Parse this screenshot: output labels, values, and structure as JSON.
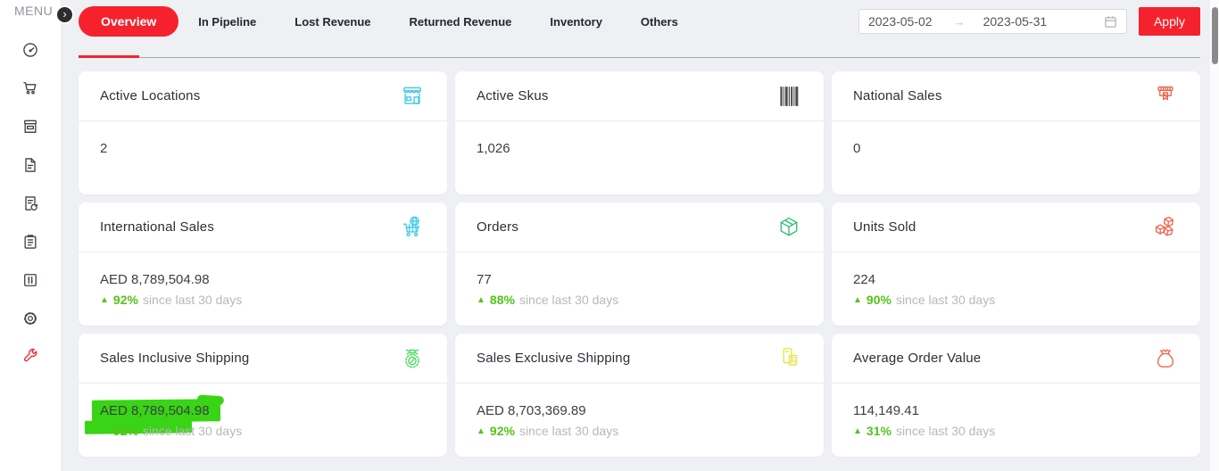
{
  "colors": {
    "accent_red": "#f5222d",
    "positive_green": "#52c41a",
    "highlight_green": "#38d415",
    "icon_cyan": "#3bc8e8",
    "icon_coral": "#f06449",
    "icon_green": "#2fbf71",
    "icon_lime": "#41d95d",
    "icon_yellow": "#e4e53e",
    "icon_dark": "#4a4a4a"
  },
  "change_glyph": "▲",
  "sidebar": {
    "menu_label": "MENU",
    "toggle_glyph": "›",
    "items": [
      {
        "icon": "dashboard-gauge-icon"
      },
      {
        "icon": "shopping-cart-icon"
      },
      {
        "icon": "storefront-icon"
      },
      {
        "icon": "document-icon"
      },
      {
        "icon": "report-sync-icon"
      },
      {
        "icon": "clipboard-icon"
      },
      {
        "icon": "sliders-icon"
      },
      {
        "icon": "settings-gear-icon"
      },
      {
        "icon": "tools-wrench-icon",
        "color": "#f5222d"
      }
    ]
  },
  "tabs": [
    {
      "label": "Overview",
      "active": true
    },
    {
      "label": "In Pipeline"
    },
    {
      "label": "Lost Revenue"
    },
    {
      "label": "Returned Revenue"
    },
    {
      "label": "Inventory"
    },
    {
      "label": "Others"
    }
  ],
  "date_range": {
    "start": "2023-05-02",
    "separator": "→",
    "end": "2023-05-31"
  },
  "apply_button": "Apply",
  "cards": [
    {
      "title": "Active Locations",
      "icon": "shop-icon",
      "icon_color": "#3bc8e8",
      "value": "2"
    },
    {
      "title": "Active Skus",
      "icon": "barcode-icon",
      "icon_color": "#4a4a4a",
      "value": "1,026"
    },
    {
      "title": "National Sales",
      "icon": "shop-tag-icon",
      "icon_color": "#f06449",
      "value": "0"
    },
    {
      "title": "International Sales",
      "icon": "globe-cart-icon",
      "icon_color": "#3bc8e8",
      "value": "AED 8,789,504.98",
      "change_pct": "92%",
      "change_text": "since last 30 days"
    },
    {
      "title": "Orders",
      "icon": "package-box-icon",
      "icon_color": "#2fbf71",
      "value": "77",
      "change_pct": "88%",
      "change_text": "since last 30 days"
    },
    {
      "title": "Units Sold",
      "icon": "cubes-icon",
      "icon_color": "#f06449",
      "value": "224",
      "change_pct": "90%",
      "change_text": "since last 30 days"
    },
    {
      "title": "Sales Inclusive Shipping",
      "icon": "coin-icon",
      "icon_color": "#41d95d",
      "value": "AED 8,789,504.98",
      "change_pct": "92%",
      "change_text": "since last 30 days",
      "highlighted": true
    },
    {
      "title": "Sales Exclusive Shipping",
      "icon": "receipt-calculator-icon",
      "icon_color": "#e4e53e",
      "value": "AED 8,703,369.89",
      "change_pct": "92%",
      "change_text": "since last 30 days"
    },
    {
      "title": "Average Order Value",
      "icon": "money-bag-icon",
      "icon_color": "#f06449",
      "value": "114,149.41",
      "change_pct": "31%",
      "change_text": "since last 30 days"
    }
  ]
}
